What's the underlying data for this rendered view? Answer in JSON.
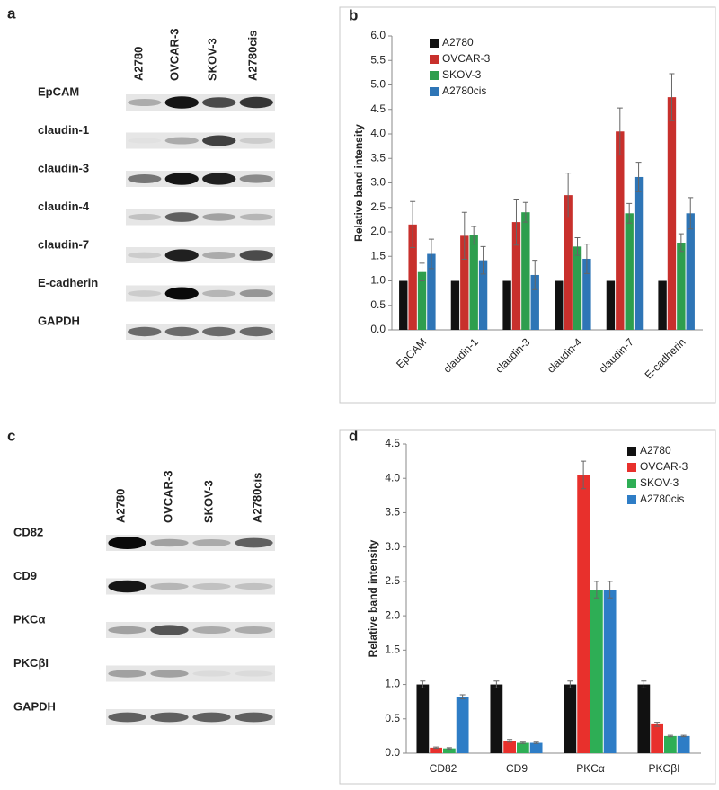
{
  "panel_labels": [
    "a",
    "b",
    "c",
    "d"
  ],
  "blot_a": {
    "lanes": [
      "A2780",
      "OVCAR-3",
      "SKOV-3",
      "A2780cis"
    ],
    "rows": [
      "EpCAM",
      "claudin-1",
      "claudin-3",
      "claudin-4",
      "claudin-7",
      "E-cadherin",
      "GAPDH"
    ]
  },
  "blot_c": {
    "lanes": [
      "A2780",
      "OVCAR-3",
      "SKOV-3",
      "A2780cis"
    ],
    "rows": [
      "CD82",
      "CD9",
      "PKCα",
      "PKCβI",
      "GAPDH"
    ]
  },
  "chart_data": [
    {
      "type": "bar",
      "y_label": "Relative band intensity",
      "categories": [
        "EpCAM",
        "claudin-1",
        "claudin-3",
        "claudin-4",
        "claudin-7",
        "E-cadherin"
      ],
      "series": [
        {
          "name": "A2780",
          "color": "#111111",
          "values": [
            1.0,
            1.0,
            1.0,
            1.0,
            1.0,
            1.0
          ]
        },
        {
          "name": "OVCAR-3",
          "color": "#c8302c",
          "values": [
            2.15,
            1.92,
            2.2,
            2.75,
            4.05,
            4.75
          ],
          "errors": [
            0.47,
            0.48,
            0.47,
            0.45,
            0.48,
            0.48
          ]
        },
        {
          "name": "SKOV-3",
          "color": "#2e9e4e",
          "values": [
            1.18,
            1.93,
            2.4,
            1.7,
            2.38,
            1.78
          ],
          "errors": [
            0.18,
            0.18,
            0.2,
            0.18,
            0.2,
            0.18
          ]
        },
        {
          "name": "A2780cis",
          "color": "#2e75b6",
          "values": [
            1.55,
            1.42,
            1.12,
            1.45,
            3.12,
            2.38
          ],
          "errors": [
            0.3,
            0.28,
            0.3,
            0.3,
            0.3,
            0.32
          ]
        }
      ],
      "ylim": [
        0,
        6
      ],
      "yticks": [
        {
          "value": 0,
          "label": "0.0"
        },
        0.5,
        {
          "value": 1,
          "label": "1.0"
        },
        1.5,
        {
          "value": 2,
          "label": "2.0"
        },
        2.5,
        {
          "value": 3,
          "label": "3.0"
        },
        3.5,
        {
          "value": 4,
          "label": "4.0"
        },
        4.5,
        {
          "value": 5,
          "label": "5.0"
        },
        5.5,
        {
          "value": 6,
          "label": "6.0"
        }
      ],
      "legend": "upper left"
    },
    {
      "type": "bar",
      "y_label": "Relative band intensity",
      "categories": [
        "CD82",
        "CD9",
        "PKCα",
        "PKCβI"
      ],
      "series": [
        {
          "name": "A2780",
          "color": "#111111",
          "values": [
            1.0,
            1.0,
            1.0,
            1.0
          ],
          "errors": [
            0.05,
            0.05,
            0.05,
            0.05
          ]
        },
        {
          "name": "OVCAR-3",
          "color": "#e8302c",
          "values": [
            0.08,
            0.18,
            4.05,
            0.42
          ],
          "errors": [
            0.01,
            0.02,
            0.2,
            0.03
          ]
        },
        {
          "name": "SKOV-3",
          "color": "#2eae55",
          "values": [
            0.07,
            0.15,
            2.38,
            0.25
          ],
          "errors": [
            0.01,
            0.01,
            0.12,
            0.01
          ]
        },
        {
          "name": "A2780cis",
          "color": "#2e7dc6",
          "values": [
            0.82,
            0.15,
            2.38,
            0.25
          ],
          "errors": [
            0.03,
            0.01,
            0.12,
            0.01
          ]
        }
      ],
      "ylim": [
        0,
        4.5
      ],
      "yticks": [
        {
          "value": 0,
          "label": "0.0"
        },
        0.5,
        {
          "value": 1,
          "label": "1.0"
        },
        1.5,
        {
          "value": 2,
          "label": "2.0"
        },
        2.5,
        {
          "value": 3,
          "label": "3.0"
        },
        3.5,
        {
          "value": 4,
          "label": "4.0"
        },
        4.5
      ],
      "legend": "upper right"
    }
  ]
}
